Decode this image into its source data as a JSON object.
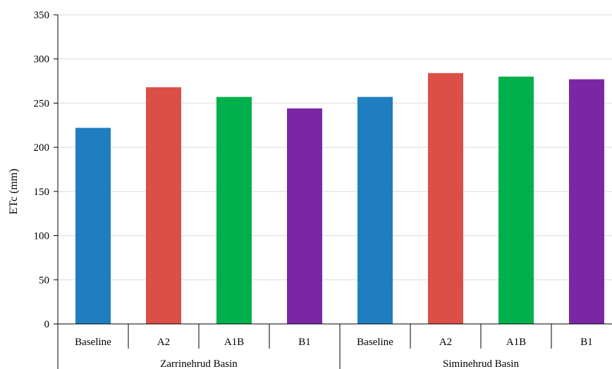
{
  "chart_data": {
    "type": "bar",
    "title": "",
    "xlabel": "",
    "ylabel": "ETc (mm)",
    "ylim": [
      0,
      350
    ],
    "yticks": [
      0,
      50,
      100,
      150,
      200,
      250,
      300,
      350
    ],
    "grid": true,
    "legend": "none",
    "groups": [
      {
        "name": "Zarrinehrud Basin",
        "categories": [
          "Baseline",
          "A2",
          "A1B",
          "B1"
        ],
        "values": [
          222,
          268,
          257,
          244
        ]
      },
      {
        "name": "Siminehrud Basin",
        "categories": [
          "Baseline",
          "A2",
          "A1B",
          "B1"
        ],
        "values": [
          257,
          284,
          280,
          277
        ]
      }
    ],
    "colors": {
      "Baseline": "#1f7ebf",
      "A2": "#db4f46",
      "A1B": "#00b04c",
      "B1": "#7b27a5"
    },
    "gridline_color": "#d9d9d9",
    "axis_color": "#000000"
  }
}
